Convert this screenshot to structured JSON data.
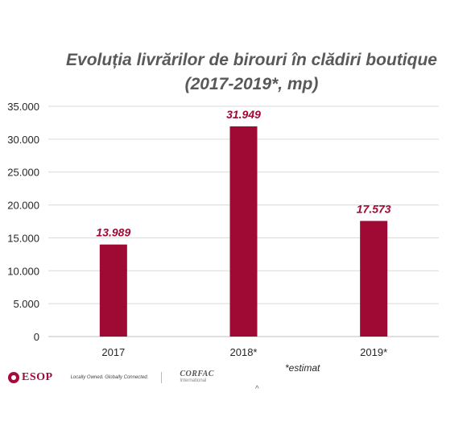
{
  "chart_data": {
    "type": "bar",
    "title": "Evoluția livrărilor de birouri în clădiri boutique",
    "subtitle": "(2017-2019*, mp)",
    "categories": [
      "2017",
      "2018*",
      "2019*"
    ],
    "values": [
      13989,
      31949,
      17573
    ],
    "data_labels": [
      "13.989",
      "31.949",
      "17.573"
    ],
    "ylim": [
      0,
      35000
    ],
    "y_ticks": [
      0,
      5000,
      10000,
      15000,
      20000,
      25000,
      30000,
      35000
    ],
    "y_tick_labels": [
      "0",
      "5.000",
      "10.000",
      "15.000",
      "20.000",
      "25.000",
      "30.000",
      "35.000"
    ],
    "xlabel": "",
    "ylabel": "",
    "grid": true,
    "bar_color": "#9e0a33",
    "label_color": "#9e0a33",
    "annotation": "*estimat"
  },
  "footer": {
    "esop_logo": "ESOP",
    "tagline": "Locally Owned. Globally Connected.",
    "corfac_logo": "CORFAC",
    "corfac_sub": "International",
    "caret_glyph": "^"
  }
}
